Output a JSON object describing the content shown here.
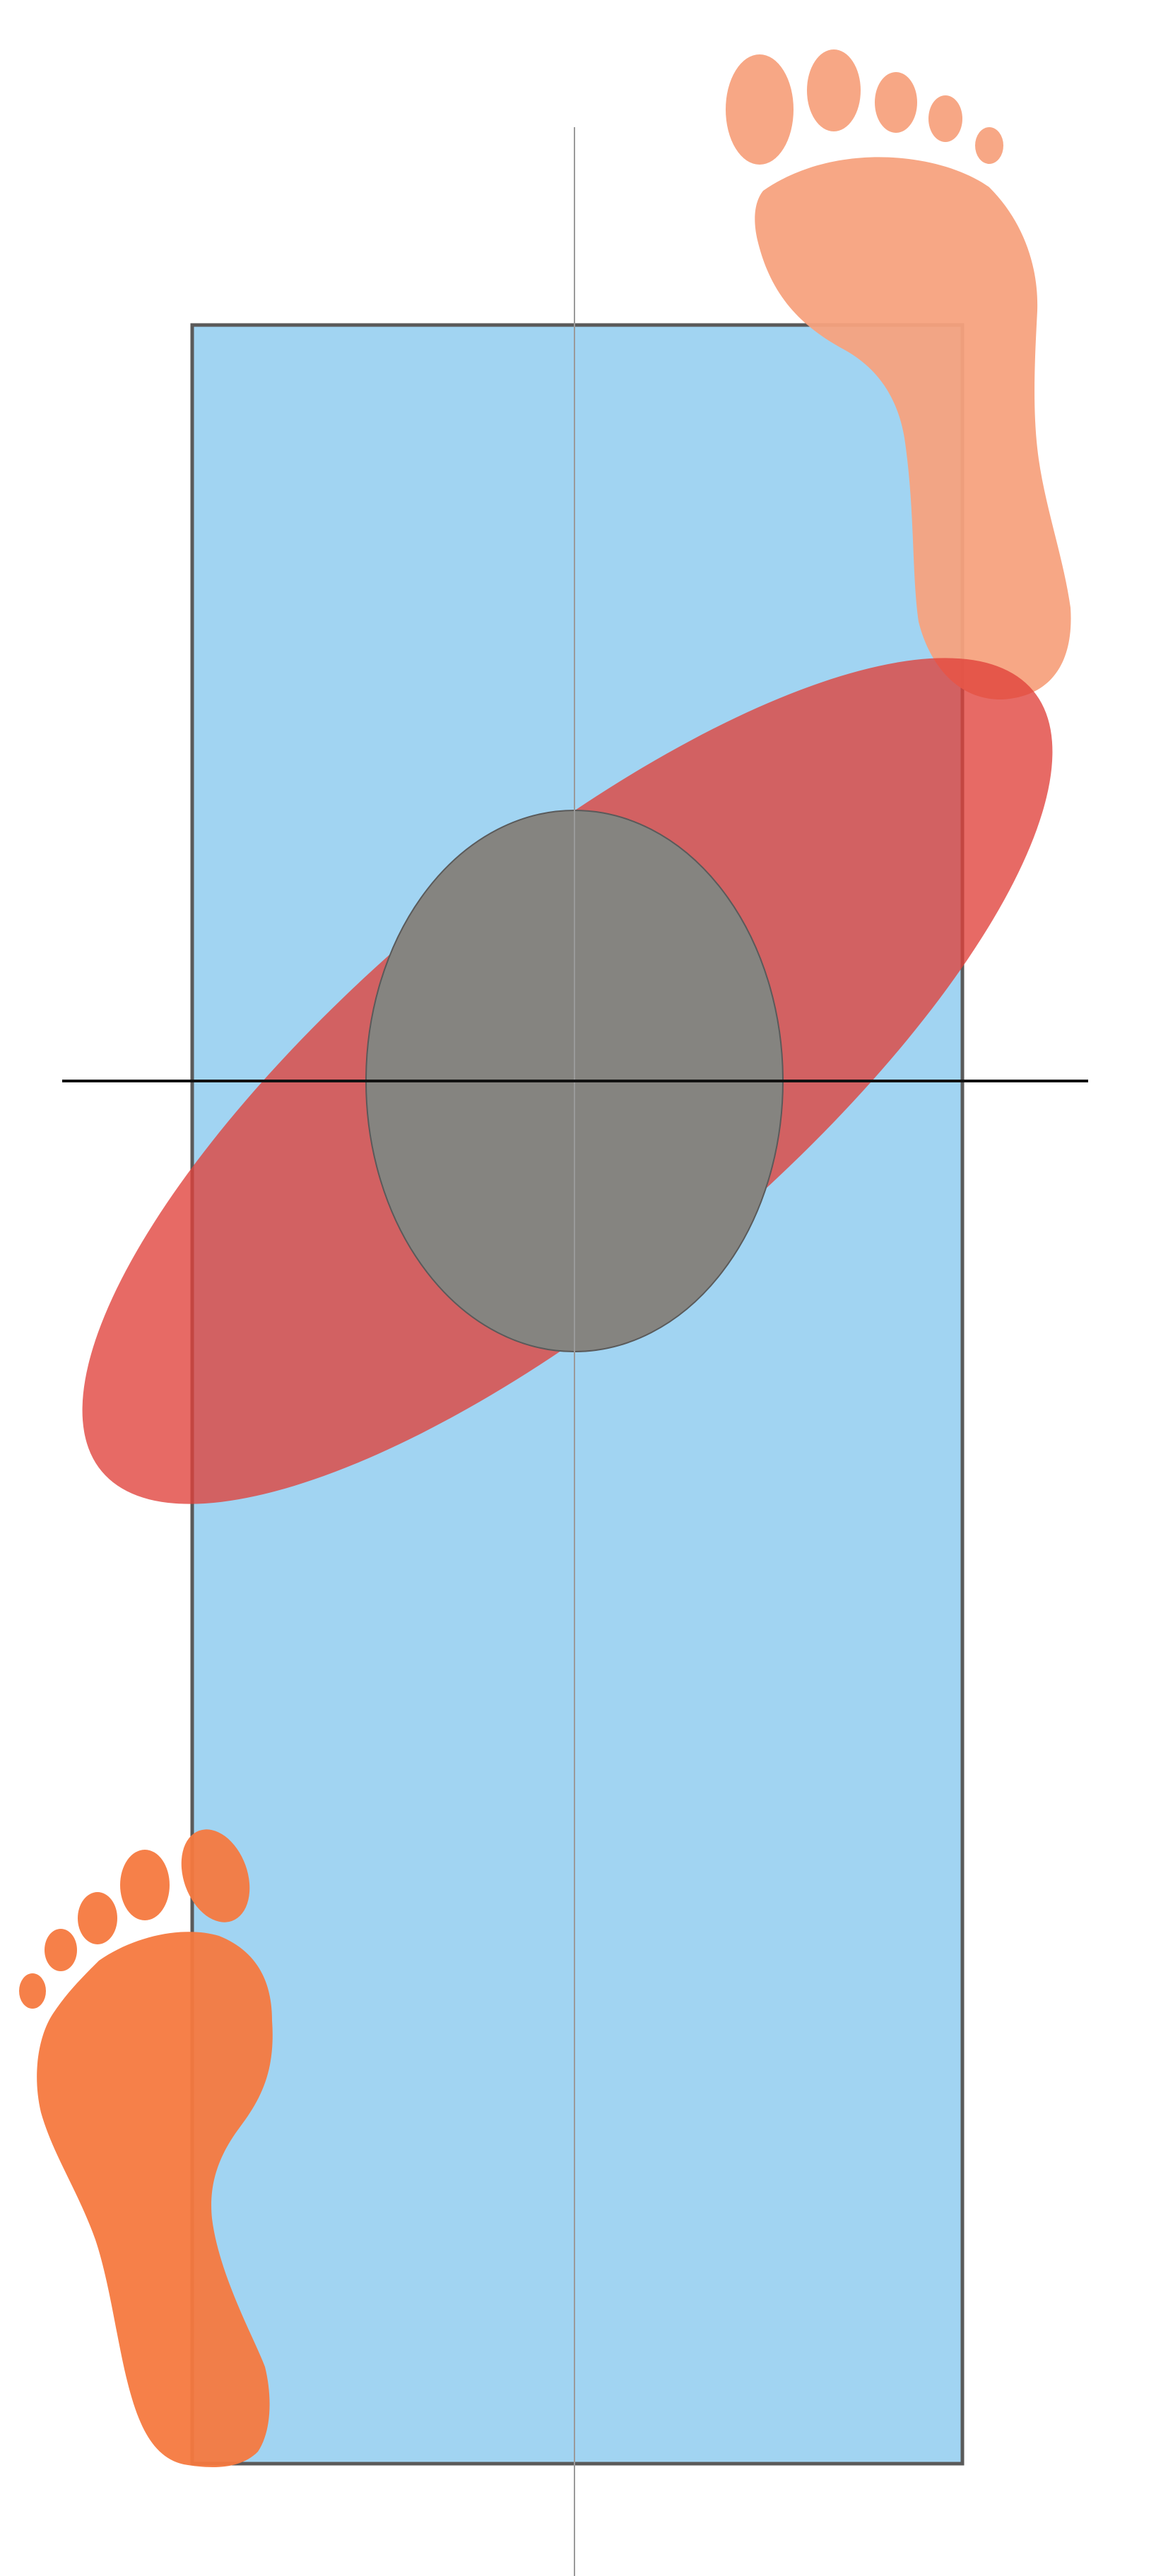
{
  "colors": {
    "background": "#ffffff",
    "mat_fill": "#a1d4f2",
    "mat_stroke": "#5a5a5a",
    "ellipse_fill": "#e0403a",
    "body_fill": "#858480",
    "body_stroke": "#5a5a5a",
    "vertical_axis": "#9a9a9a",
    "horizontal_axis": "#111111",
    "right_foot": "#f7a27e",
    "left_foot": "#f6793f"
  },
  "icons": {
    "right_foot": "right-footprint-icon",
    "left_foot": "left-footprint-icon"
  }
}
